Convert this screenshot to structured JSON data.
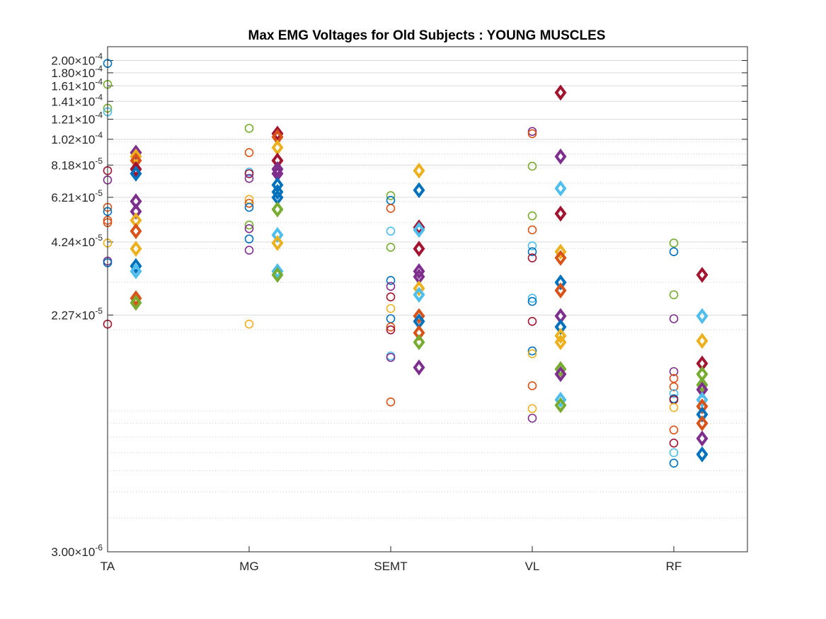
{
  "chart_data": {
    "type": "scatter",
    "title": "Max EMG Voltages for Old Subjects : YOUNG MUSCLES",
    "categories": [
      "TA",
      "MG",
      "SEMT",
      "VL",
      "RF"
    ],
    "y_scale": "log",
    "ylim": [
      3e-06,
      0.000225
    ],
    "yticks": [
      {
        "value": 3e-06,
        "mantissa": "3.00",
        "exp": "-6"
      },
      {
        "value": 2.27e-05,
        "mantissa": "2.27",
        "exp": "-5"
      },
      {
        "value": 4.24e-05,
        "mantissa": "4.24",
        "exp": "-5"
      },
      {
        "value": 6.21e-05,
        "mantissa": "6.21",
        "exp": "-5"
      },
      {
        "value": 8.18e-05,
        "mantissa": "8.18",
        "exp": "-5"
      },
      {
        "value": 0.000102,
        "mantissa": "1.02",
        "exp": "-4"
      },
      {
        "value": 0.000121,
        "mantissa": "1.21",
        "exp": "-4"
      },
      {
        "value": 0.000141,
        "mantissa": "1.41",
        "exp": "-4"
      },
      {
        "value": 0.000161,
        "mantissa": "1.61",
        "exp": "-4"
      },
      {
        "value": 0.00018,
        "mantissa": "1.80",
        "exp": "-4"
      },
      {
        "value": 0.0002,
        "mantissa": "2.00",
        "exp": "-4"
      }
    ],
    "grid": true,
    "colors": [
      "#0072bd",
      "#d95319",
      "#edb120",
      "#7e2f8e",
      "#77ac30",
      "#4dbeee",
      "#a2142f"
    ],
    "series": [
      {
        "marker": "circle",
        "group_offset": 0,
        "points": [
          {
            "cat": 0,
            "color": 0,
            "y": 0.000195
          },
          {
            "cat": 0,
            "color": 4,
            "y": 0.000163
          },
          {
            "cat": 0,
            "color": 4,
            "y": 0.000133
          },
          {
            "cat": 0,
            "color": 5,
            "y": 0.000129
          },
          {
            "cat": 0,
            "color": 6,
            "y": 7.8e-05
          },
          {
            "cat": 0,
            "color": 3,
            "y": 7.2e-05
          },
          {
            "cat": 0,
            "color": 1,
            "y": 5.7e-05
          },
          {
            "cat": 0,
            "color": 0,
            "y": 5.5e-05
          },
          {
            "cat": 0,
            "color": 1,
            "y": 5.1e-05
          },
          {
            "cat": 0,
            "color": 1,
            "y": 5e-05
          },
          {
            "cat": 0,
            "color": 2,
            "y": 4.2e-05
          },
          {
            "cat": 0,
            "color": 3,
            "y": 3.6e-05
          },
          {
            "cat": 0,
            "color": 0,
            "y": 3.55e-05
          },
          {
            "cat": 0,
            "color": 6,
            "y": 2.1e-05
          },
          {
            "cat": 1,
            "color": 4,
            "y": 0.000112
          },
          {
            "cat": 1,
            "color": 1,
            "y": 9.1e-05
          },
          {
            "cat": 1,
            "color": 5,
            "y": 7.7e-05
          },
          {
            "cat": 1,
            "color": 6,
            "y": 7.6e-05
          },
          {
            "cat": 1,
            "color": 3,
            "y": 7.3e-05
          },
          {
            "cat": 1,
            "color": 2,
            "y": 6.1e-05
          },
          {
            "cat": 1,
            "color": 1,
            "y": 5.9e-05
          },
          {
            "cat": 1,
            "color": 0,
            "y": 5.7e-05
          },
          {
            "cat": 1,
            "color": 4,
            "y": 4.9e-05
          },
          {
            "cat": 1,
            "color": 3,
            "y": 4.75e-05
          },
          {
            "cat": 1,
            "color": 0,
            "y": 4.35e-05
          },
          {
            "cat": 1,
            "color": 3,
            "y": 3.95e-05
          },
          {
            "cat": 1,
            "color": 2,
            "y": 2.1e-05
          },
          {
            "cat": 2,
            "color": 4,
            "y": 6.3e-05
          },
          {
            "cat": 2,
            "color": 0,
            "y": 6.05e-05
          },
          {
            "cat": 2,
            "color": 1,
            "y": 5.65e-05
          },
          {
            "cat": 2,
            "color": 5,
            "y": 4.65e-05
          },
          {
            "cat": 2,
            "color": 4,
            "y": 4.05e-05
          },
          {
            "cat": 2,
            "color": 0,
            "y": 3.05e-05
          },
          {
            "cat": 2,
            "color": 3,
            "y": 2.9e-05
          },
          {
            "cat": 2,
            "color": 6,
            "y": 2.65e-05
          },
          {
            "cat": 2,
            "color": 2,
            "y": 2.4e-05
          },
          {
            "cat": 2,
            "color": 0,
            "y": 2.2e-05
          },
          {
            "cat": 2,
            "color": 1,
            "y": 2.05e-05
          },
          {
            "cat": 2,
            "color": 6,
            "y": 2e-05
          },
          {
            "cat": 2,
            "color": 5,
            "y": 1.6e-05
          },
          {
            "cat": 2,
            "color": 3,
            "y": 1.58e-05
          },
          {
            "cat": 2,
            "color": 1,
            "y": 1.08e-05
          },
          {
            "cat": 3,
            "color": 3,
            "y": 0.000109
          },
          {
            "cat": 3,
            "color": 1,
            "y": 0.000107
          },
          {
            "cat": 3,
            "color": 4,
            "y": 8.1e-05
          },
          {
            "cat": 3,
            "color": 4,
            "y": 5.3e-05
          },
          {
            "cat": 3,
            "color": 1,
            "y": 4.7e-05
          },
          {
            "cat": 3,
            "color": 5,
            "y": 4.1e-05
          },
          {
            "cat": 3,
            "color": 0,
            "y": 3.9e-05
          },
          {
            "cat": 3,
            "color": 6,
            "y": 3.7e-05
          },
          {
            "cat": 3,
            "color": 5,
            "y": 2.62e-05
          },
          {
            "cat": 3,
            "color": 0,
            "y": 2.55e-05
          },
          {
            "cat": 3,
            "color": 6,
            "y": 2.15e-05
          },
          {
            "cat": 3,
            "color": 0,
            "y": 1.67e-05
          },
          {
            "cat": 3,
            "color": 2,
            "y": 1.63e-05
          },
          {
            "cat": 3,
            "color": 1,
            "y": 1.24e-05
          },
          {
            "cat": 3,
            "color": 2,
            "y": 1.02e-05
          },
          {
            "cat": 3,
            "color": 3,
            "y": 9.4e-06
          },
          {
            "cat": 4,
            "color": 4,
            "y": 4.2e-05
          },
          {
            "cat": 4,
            "color": 0,
            "y": 3.9e-05
          },
          {
            "cat": 4,
            "color": 4,
            "y": 2.7e-05
          },
          {
            "cat": 4,
            "color": 3,
            "y": 2.2e-05
          },
          {
            "cat": 4,
            "color": 3,
            "y": 1.4e-05
          },
          {
            "cat": 4,
            "color": 1,
            "y": 1.32e-05
          },
          {
            "cat": 4,
            "color": 1,
            "y": 1.23e-05
          },
          {
            "cat": 4,
            "color": 5,
            "y": 1.16e-05
          },
          {
            "cat": 4,
            "color": 0,
            "y": 1.11e-05
          },
          {
            "cat": 4,
            "color": 6,
            "y": 1.1e-05
          },
          {
            "cat": 4,
            "color": 2,
            "y": 1.03e-05
          },
          {
            "cat": 4,
            "color": 1,
            "y": 8.5e-06
          },
          {
            "cat": 4,
            "color": 6,
            "y": 7.6e-06
          },
          {
            "cat": 4,
            "color": 5,
            "y": 7e-06
          },
          {
            "cat": 4,
            "color": 0,
            "y": 6.4e-06
          }
        ]
      },
      {
        "marker": "diamond",
        "group_offset": 1,
        "points": [
          {
            "cat": 0,
            "color": 3,
            "y": 9.1e-05
          },
          {
            "cat": 0,
            "color": 2,
            "y": 8.8e-05
          },
          {
            "cat": 0,
            "color": 1,
            "y": 8.5e-05
          },
          {
            "cat": 0,
            "color": 6,
            "y": 7.9e-05
          },
          {
            "cat": 0,
            "color": 0,
            "y": 7.6e-05
          },
          {
            "cat": 0,
            "color": 3,
            "y": 6e-05
          },
          {
            "cat": 0,
            "color": 3,
            "y": 5.5e-05
          },
          {
            "cat": 0,
            "color": 2,
            "y": 5.1e-05
          },
          {
            "cat": 0,
            "color": 1,
            "y": 4.65e-05
          },
          {
            "cat": 0,
            "color": 2,
            "y": 4e-05
          },
          {
            "cat": 0,
            "color": 0,
            "y": 3.45e-05
          },
          {
            "cat": 0,
            "color": 5,
            "y": 3.3e-05
          },
          {
            "cat": 0,
            "color": 1,
            "y": 2.62e-05
          },
          {
            "cat": 0,
            "color": 4,
            "y": 2.52e-05
          },
          {
            "cat": 1,
            "color": 6,
            "y": 0.000107
          },
          {
            "cat": 1,
            "color": 1,
            "y": 0.000104
          },
          {
            "cat": 1,
            "color": 2,
            "y": 9.5e-05
          },
          {
            "cat": 1,
            "color": 6,
            "y": 8.5e-05
          },
          {
            "cat": 1,
            "color": 3,
            "y": 7.9e-05
          },
          {
            "cat": 1,
            "color": 3,
            "y": 7.6e-05
          },
          {
            "cat": 1,
            "color": 0,
            "y": 6.9e-05
          },
          {
            "cat": 1,
            "color": 0,
            "y": 6.5e-05
          },
          {
            "cat": 1,
            "color": 0,
            "y": 6.2e-05
          },
          {
            "cat": 1,
            "color": 4,
            "y": 5.6e-05
          },
          {
            "cat": 1,
            "color": 5,
            "y": 4.5e-05
          },
          {
            "cat": 1,
            "color": 2,
            "y": 4.2e-05
          },
          {
            "cat": 1,
            "color": 5,
            "y": 3.3e-05
          },
          {
            "cat": 1,
            "color": 4,
            "y": 3.2e-05
          },
          {
            "cat": 2,
            "color": 2,
            "y": 7.8e-05
          },
          {
            "cat": 2,
            "color": 0,
            "y": 6.6e-05
          },
          {
            "cat": 2,
            "color": 6,
            "y": 4.8e-05
          },
          {
            "cat": 2,
            "color": 5,
            "y": 4.7e-05
          },
          {
            "cat": 2,
            "color": 6,
            "y": 4e-05
          },
          {
            "cat": 2,
            "color": 3,
            "y": 3.3e-05
          },
          {
            "cat": 2,
            "color": 3,
            "y": 3.15e-05
          },
          {
            "cat": 2,
            "color": 2,
            "y": 2.85e-05
          },
          {
            "cat": 2,
            "color": 5,
            "y": 2.7e-05
          },
          {
            "cat": 2,
            "color": 1,
            "y": 2.25e-05
          },
          {
            "cat": 2,
            "color": 0,
            "y": 2.15e-05
          },
          {
            "cat": 2,
            "color": 1,
            "y": 1.95e-05
          },
          {
            "cat": 2,
            "color": 4,
            "y": 1.8e-05
          },
          {
            "cat": 2,
            "color": 3,
            "y": 1.45e-05
          },
          {
            "cat": 3,
            "color": 6,
            "y": 0.000152
          },
          {
            "cat": 3,
            "color": 3,
            "y": 8.8e-05
          },
          {
            "cat": 3,
            "color": 5,
            "y": 6.7e-05
          },
          {
            "cat": 3,
            "color": 6,
            "y": 5.4e-05
          },
          {
            "cat": 3,
            "color": 2,
            "y": 3.9e-05
          },
          {
            "cat": 3,
            "color": 1,
            "y": 3.7e-05
          },
          {
            "cat": 3,
            "color": 0,
            "y": 3e-05
          },
          {
            "cat": 3,
            "color": 1,
            "y": 2.8e-05
          },
          {
            "cat": 3,
            "color": 3,
            "y": 2.25e-05
          },
          {
            "cat": 3,
            "color": 0,
            "y": 2.05e-05
          },
          {
            "cat": 3,
            "color": 2,
            "y": 1.9e-05
          },
          {
            "cat": 3,
            "color": 2,
            "y": 1.8e-05
          },
          {
            "cat": 3,
            "color": 4,
            "y": 1.43e-05
          },
          {
            "cat": 3,
            "color": 3,
            "y": 1.37e-05
          },
          {
            "cat": 3,
            "color": 5,
            "y": 1.1e-05
          },
          {
            "cat": 3,
            "color": 4,
            "y": 1.05e-05
          },
          {
            "cat": 4,
            "color": 6,
            "y": 3.2e-05
          },
          {
            "cat": 4,
            "color": 5,
            "y": 2.25e-05
          },
          {
            "cat": 4,
            "color": 2,
            "y": 1.82e-05
          },
          {
            "cat": 4,
            "color": 6,
            "y": 1.5e-05
          },
          {
            "cat": 4,
            "color": 4,
            "y": 1.37e-05
          },
          {
            "cat": 4,
            "color": 4,
            "y": 1.25e-05
          },
          {
            "cat": 4,
            "color": 3,
            "y": 1.2e-05
          },
          {
            "cat": 4,
            "color": 5,
            "y": 1.1e-05
          },
          {
            "cat": 4,
            "color": 1,
            "y": 1.04e-05
          },
          {
            "cat": 4,
            "color": 0,
            "y": 9.7e-06
          },
          {
            "cat": 4,
            "color": 1,
            "y": 9e-06
          },
          {
            "cat": 4,
            "color": 3,
            "y": 7.9e-06
          },
          {
            "cat": 4,
            "color": 0,
            "y": 6.9e-06
          }
        ]
      }
    ]
  }
}
